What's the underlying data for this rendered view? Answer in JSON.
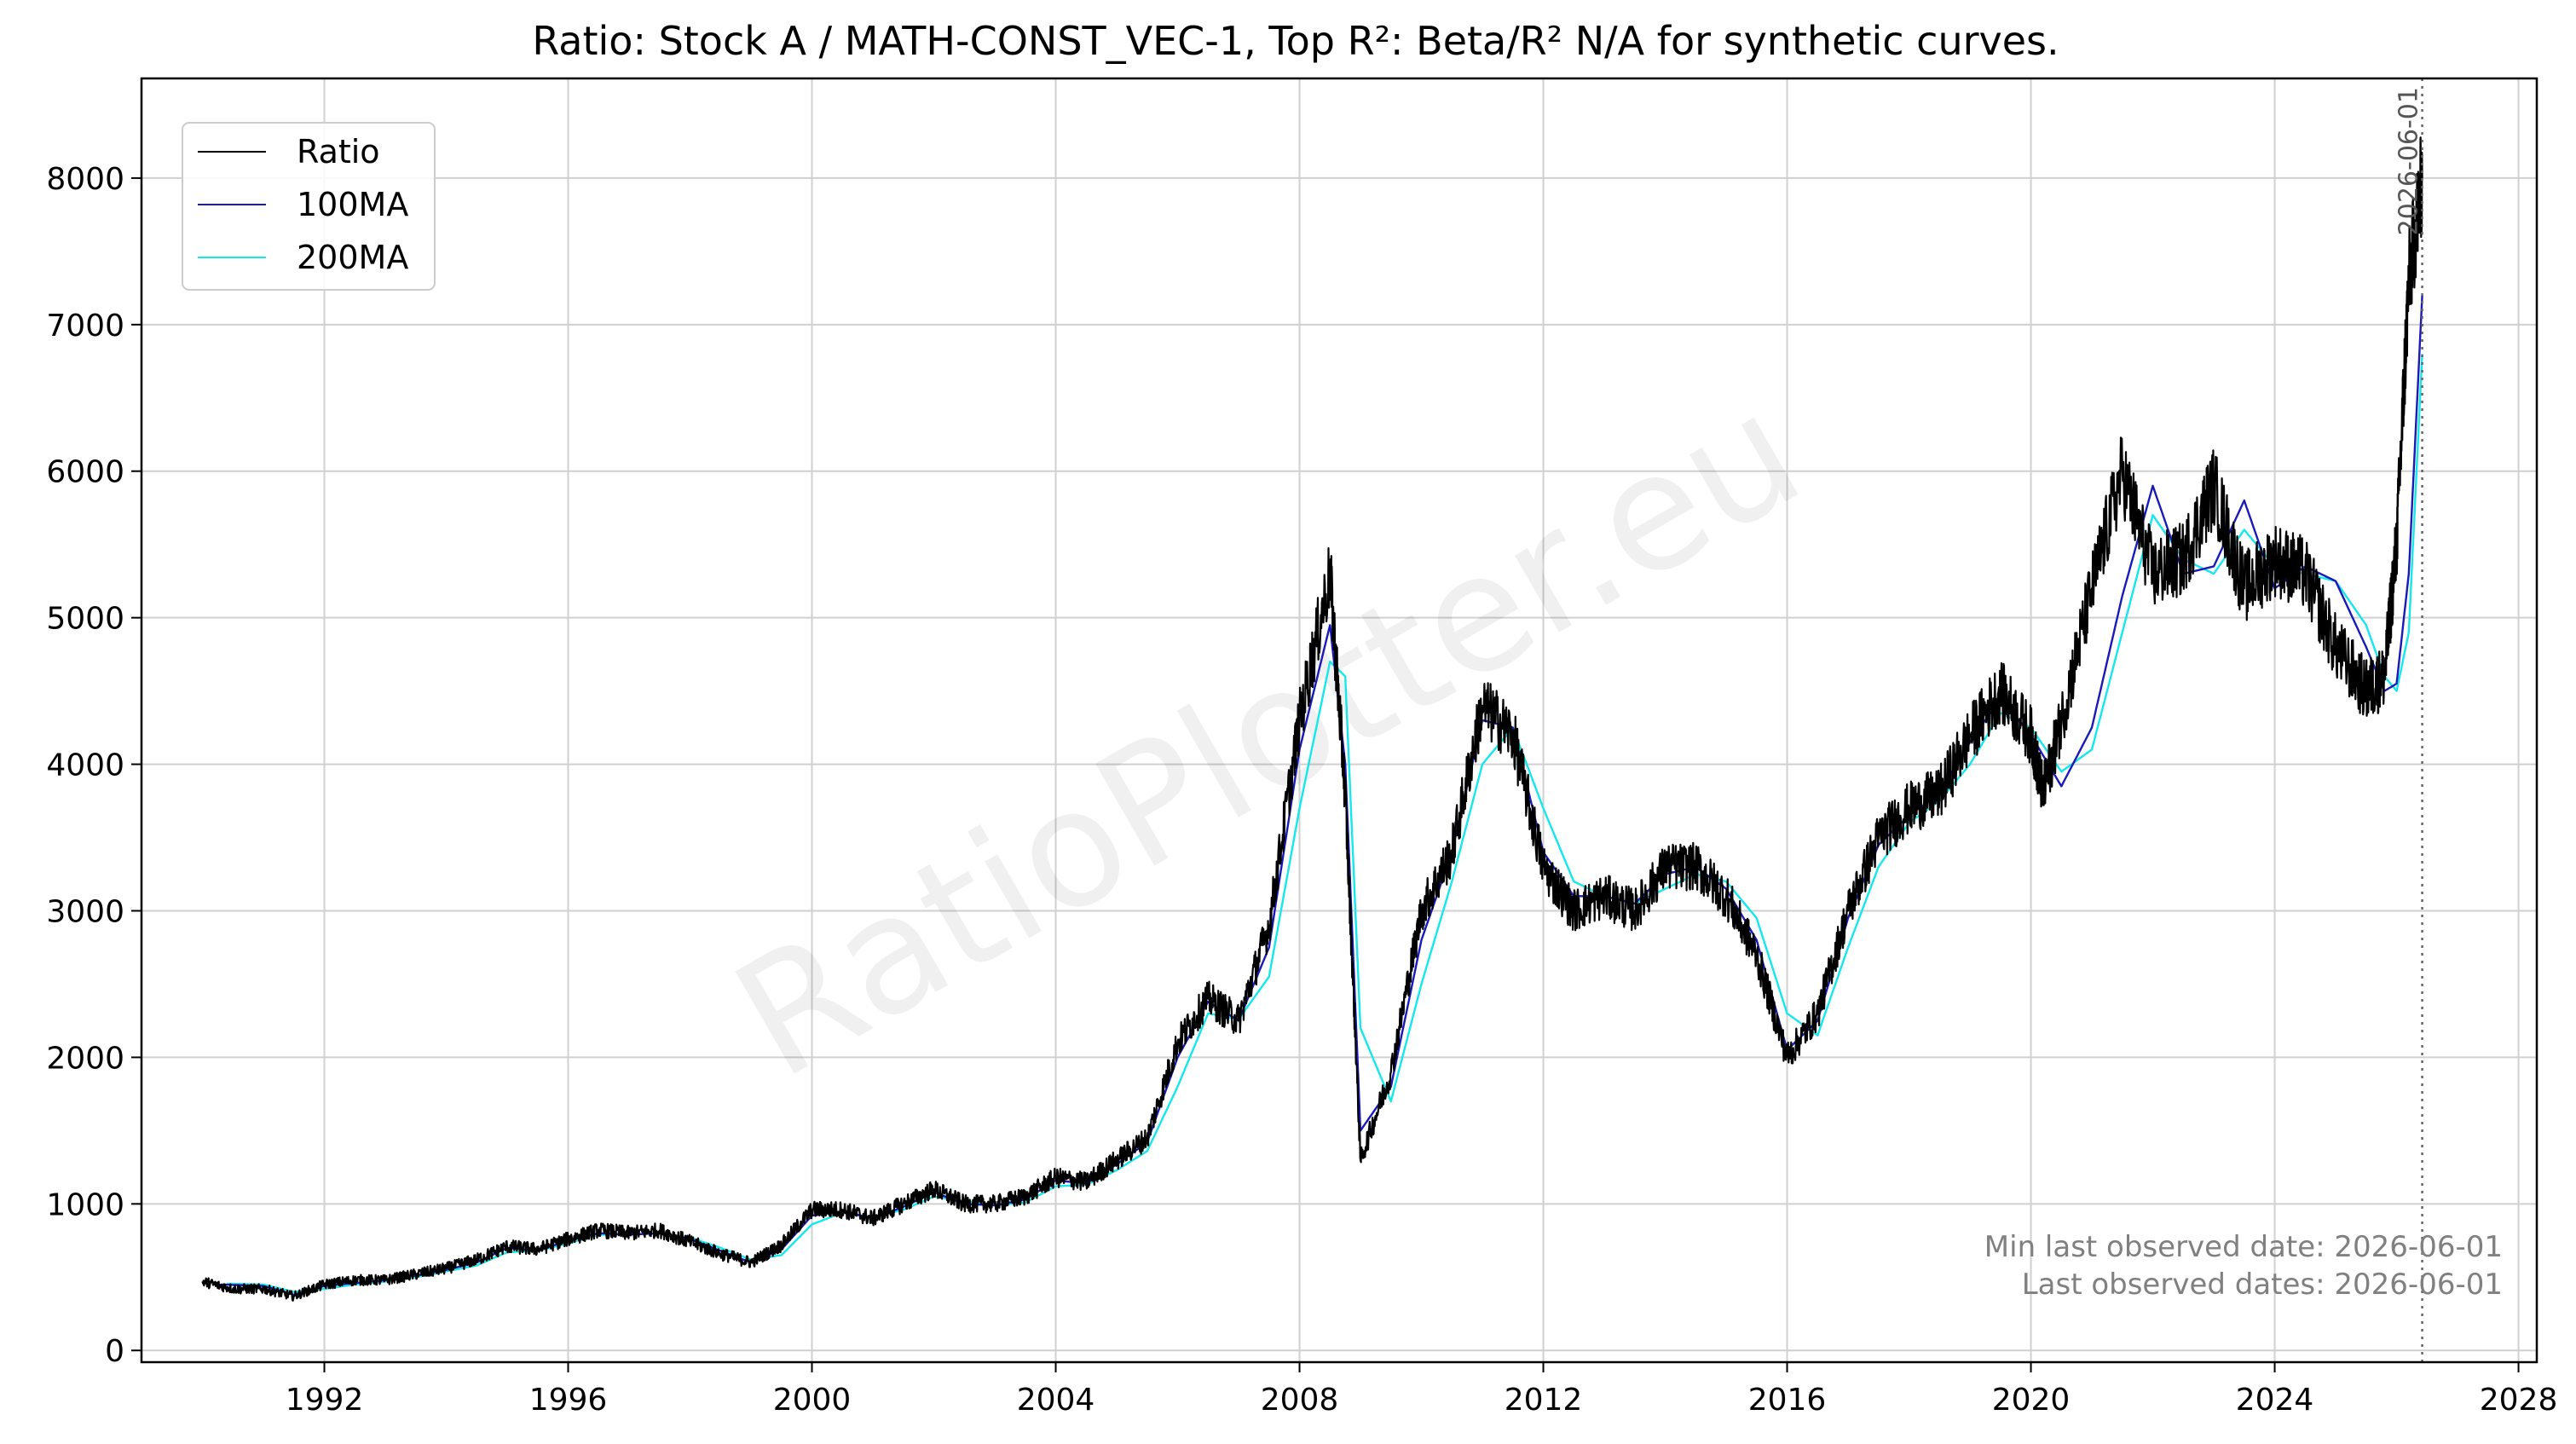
{
  "chart_data": {
    "type": "line",
    "title": "Ratio: Stock A / MATH-CONST_VEC-1, Top R²: Beta/R² N/A for synthetic curves.",
    "xlabel": "",
    "ylabel": "",
    "xlim": [
      1989.0,
      2028.3
    ],
    "ylim": [
      -80,
      8680
    ],
    "x_ticks": [
      "1992",
      "1996",
      "2000",
      "2004",
      "2008",
      "2012",
      "2016",
      "2020",
      "2024",
      "2028"
    ],
    "y_ticks": [
      "0",
      "1000",
      "2000",
      "3000",
      "4000",
      "5000",
      "6000",
      "7000",
      "8000"
    ],
    "grid": true,
    "legend_position": "top-left",
    "series": [
      {
        "name": "Ratio",
        "color": "#000000",
        "x": [
          1990.0,
          1990.5,
          1991.0,
          1991.5,
          1992.0,
          1992.5,
          1993.0,
          1993.5,
          1994.0,
          1994.5,
          1995.0,
          1995.5,
          1996.0,
          1996.5,
          1997.0,
          1997.5,
          1998.0,
          1998.5,
          1999.0,
          1999.5,
          2000.0,
          2000.5,
          2001.0,
          2001.5,
          2002.0,
          2002.5,
          2003.0,
          2003.5,
          2004.0,
          2004.5,
          2005.0,
          2005.5,
          2006.0,
          2006.5,
          2007.0,
          2007.5,
          2008.0,
          2008.5,
          2008.75,
          2009.0,
          2009.5,
          2010.0,
          2010.5,
          2011.0,
          2011.5,
          2012.0,
          2012.5,
          2013.0,
          2013.5,
          2014.0,
          2014.5,
          2015.0,
          2015.5,
          2016.0,
          2016.5,
          2017.0,
          2017.5,
          2018.0,
          2018.5,
          2019.0,
          2019.5,
          2020.0,
          2020.2,
          2020.5,
          2021.0,
          2021.5,
          2022.0,
          2022.5,
          2023.0,
          2023.5,
          2024.0,
          2024.5,
          2025.0,
          2025.5,
          2025.8,
          2026.0,
          2026.2,
          2026.42
        ],
        "values": [
          470,
          420,
          420,
          370,
          450,
          480,
          480,
          520,
          560,
          620,
          710,
          690,
          760,
          820,
          800,
          820,
          740,
          660,
          600,
          720,
          960,
          960,
          900,
          1000,
          1100,
          1000,
          1000,
          1050,
          1180,
          1150,
          1300,
          1450,
          2100,
          2400,
          2250,
          2900,
          4300,
          5300,
          3800,
          1300,
          1900,
          3000,
          3400,
          4400,
          4200,
          3300,
          3000,
          3100,
          3000,
          3300,
          3300,
          3100,
          2700,
          2000,
          2300,
          3000,
          3500,
          3700,
          3800,
          4200,
          4500,
          4200,
          3800,
          4300,
          5200,
          6000,
          5300,
          5400,
          5900,
          5200,
          5400,
          5300,
          4800,
          4500,
          4600,
          5500,
          7300,
          8000
        ]
      },
      {
        "name": "100MA",
        "color": "#1a1ab8",
        "x": [
          1990.3,
          1991.0,
          1991.5,
          1992.0,
          1992.5,
          1993.0,
          1993.5,
          1994.0,
          1994.5,
          1995.0,
          1995.5,
          1996.0,
          1996.5,
          1997.0,
          1997.5,
          1998.0,
          1998.5,
          1999.0,
          1999.5,
          2000.0,
          2000.5,
          2001.0,
          2001.5,
          2002.0,
          2002.5,
          2003.0,
          2003.5,
          2004.0,
          2004.5,
          2005.0,
          2005.5,
          2006.0,
          2006.5,
          2007.0,
          2007.5,
          2008.0,
          2008.5,
          2008.75,
          2009.0,
          2009.5,
          2010.0,
          2010.5,
          2011.0,
          2011.5,
          2012.0,
          2012.5,
          2013.0,
          2013.5,
          2014.0,
          2014.5,
          2015.0,
          2015.5,
          2016.0,
          2016.5,
          2017.0,
          2017.5,
          2018.0,
          2018.5,
          2019.0,
          2019.5,
          2020.0,
          2020.5,
          2021.0,
          2021.5,
          2022.0,
          2022.5,
          2023.0,
          2023.5,
          2024.0,
          2024.5,
          2025.0,
          2025.5,
          2025.8,
          2026.0,
          2026.2,
          2026.42
        ],
        "values": [
          450,
          440,
          380,
          440,
          460,
          480,
          510,
          550,
          600,
          700,
          680,
          750,
          800,
          790,
          800,
          760,
          680,
          600,
          690,
          920,
          950,
          900,
          980,
          1080,
          1000,
          990,
          1030,
          1160,
          1140,
          1270,
          1420,
          2000,
          2380,
          2250,
          2750,
          4100,
          4950,
          4000,
          1500,
          1800,
          2800,
          3400,
          4300,
          4250,
          3400,
          3100,
          3100,
          3050,
          3250,
          3300,
          3150,
          2800,
          2050,
          2250,
          2950,
          3450,
          3650,
          3800,
          4150,
          4450,
          4200,
          3850,
          4250,
          5150,
          5900,
          5300,
          5350,
          5800,
          5200,
          5350,
          5250,
          4800,
          4500,
          4550,
          5300,
          7200
        ]
      },
      {
        "name": "200MA",
        "color": "#14e8ec",
        "x": [
          1990.4,
          1991.0,
          1991.5,
          1992.0,
          1992.5,
          1993.0,
          1993.5,
          1994.0,
          1994.5,
          1995.0,
          1995.5,
          1996.0,
          1996.5,
          1997.0,
          1997.5,
          1998.0,
          1998.5,
          1999.0,
          1999.5,
          2000.0,
          2000.5,
          2001.0,
          2001.5,
          2002.0,
          2002.5,
          2003.0,
          2003.5,
          2004.0,
          2004.5,
          2005.0,
          2005.5,
          2006.0,
          2006.5,
          2007.0,
          2007.5,
          2008.0,
          2008.5,
          2008.75,
          2009.0,
          2009.5,
          2010.0,
          2010.5,
          2011.0,
          2011.5,
          2012.0,
          2012.5,
          2013.0,
          2013.5,
          2014.0,
          2014.5,
          2015.0,
          2015.5,
          2016.0,
          2016.5,
          2017.0,
          2017.5,
          2018.0,
          2018.5,
          2019.0,
          2019.5,
          2020.0,
          2020.5,
          2021.0,
          2021.5,
          2022.0,
          2022.5,
          2023.0,
          2023.5,
          2024.0,
          2024.5,
          2025.0,
          2025.5,
          2025.8,
          2026.0,
          2026.2,
          2026.42
        ],
        "values": [
          455,
          450,
          400,
          420,
          450,
          470,
          500,
          540,
          580,
          670,
          680,
          730,
          790,
          790,
          800,
          770,
          700,
          620,
          650,
          860,
          940,
          910,
          960,
          1050,
          1020,
          990,
          1010,
          1120,
          1130,
          1230,
          1360,
          1800,
          2300,
          2260,
          2550,
          3700,
          4700,
          4600,
          2200,
          1700,
          2500,
          3200,
          4000,
          4250,
          3700,
          3200,
          3100,
          3050,
          3150,
          3250,
          3200,
          2950,
          2300,
          2150,
          2750,
          3300,
          3600,
          3750,
          4000,
          4350,
          4250,
          3950,
          4100,
          4900,
          5700,
          5400,
          5300,
          5600,
          5350,
          5300,
          5250,
          4950,
          4600,
          4500,
          4900,
          6800
        ]
      }
    ],
    "vertical_marker": {
      "x": 2026.42,
      "label": "2026-06-01",
      "style": "dotted",
      "color": "#666666"
    },
    "annotations": [
      "Min last observed date: 2026-06-01",
      "Last observed dates: 2026-06-01"
    ]
  },
  "watermark": "RatioPlotter.eu",
  "legend": [
    {
      "label": "Ratio",
      "color": "#000000"
    },
    {
      "label": "100MA",
      "color": "#1a1ab8"
    },
    {
      "label": "200MA",
      "color": "#14e8ec"
    }
  ]
}
